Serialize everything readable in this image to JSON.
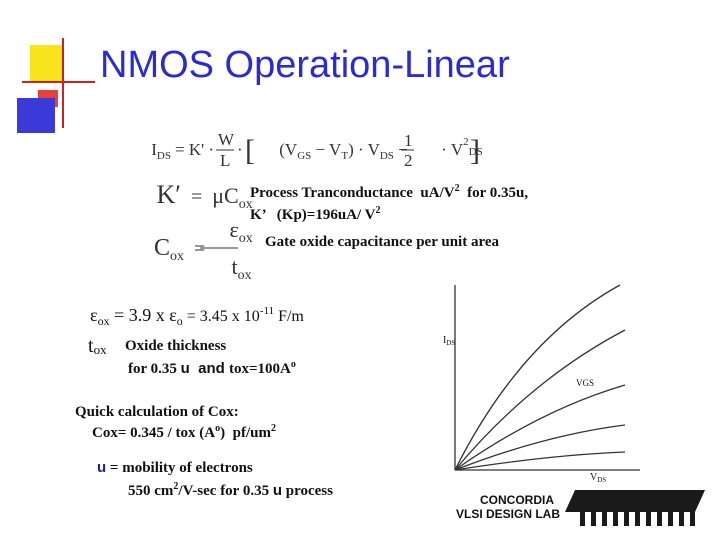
{
  "title": "NMOS Operation-Linear",
  "eq_ids": [
    "I",
    "DS",
    "= K' ·",
    "W",
    "L",
    "·",
    "[",
    "(V",
    "GS",
    " − V",
    "T",
    ") · V",
    "DS",
    " −",
    "1",
    "2",
    "· V",
    "2",
    "DS",
    "]"
  ],
  "eq_k": [
    "K′",
    "=",
    "μC",
    "ox"
  ],
  "eq_cox": [
    "C",
    "ox",
    "=",
    "ε",
    "ox",
    "t",
    "ox"
  ],
  "notes": {
    "transconductance": [
      "Process Tranconductance  uA/V",
      "2",
      "  for 0.35u,"
    ],
    "kp": [
      "K’   (Kp)=196uA/ V",
      "2"
    ],
    "cox": "Gate oxide capacitance per unit area"
  },
  "permittivity": [
    "ε",
    "ox",
    " = 3.9 x ",
    "ε",
    "o",
    " = 3.45 x 10",
    "-11",
    " F/m"
  ],
  "thickness": {
    "symbol": [
      "t",
      "ox"
    ],
    "label": "Oxide thickness",
    "detail": [
      "for 0.35 ",
      "u",
      "  and ",
      "tox=100A",
      "o"
    ]
  },
  "quick": {
    "heading": "Quick calculation of Cox:",
    "formula": [
      "Cox= 0.345 / tox (A",
      "o",
      ")  pf/um",
      "2"
    ]
  },
  "mobility": {
    "line1": [
      "u",
      " = mobility of electrons"
    ],
    "line2": [
      "550 cm",
      "2",
      "/V-sec for 0.35 ",
      "u",
      " process"
    ]
  },
  "graph": {
    "y_label": [
      "I",
      "DS"
    ],
    "curve_label": "VGS",
    "x_label": [
      "V",
      "DS"
    ]
  },
  "logo": [
    "CONCORDIA",
    "VLSI DESIGN LAB"
  ]
}
